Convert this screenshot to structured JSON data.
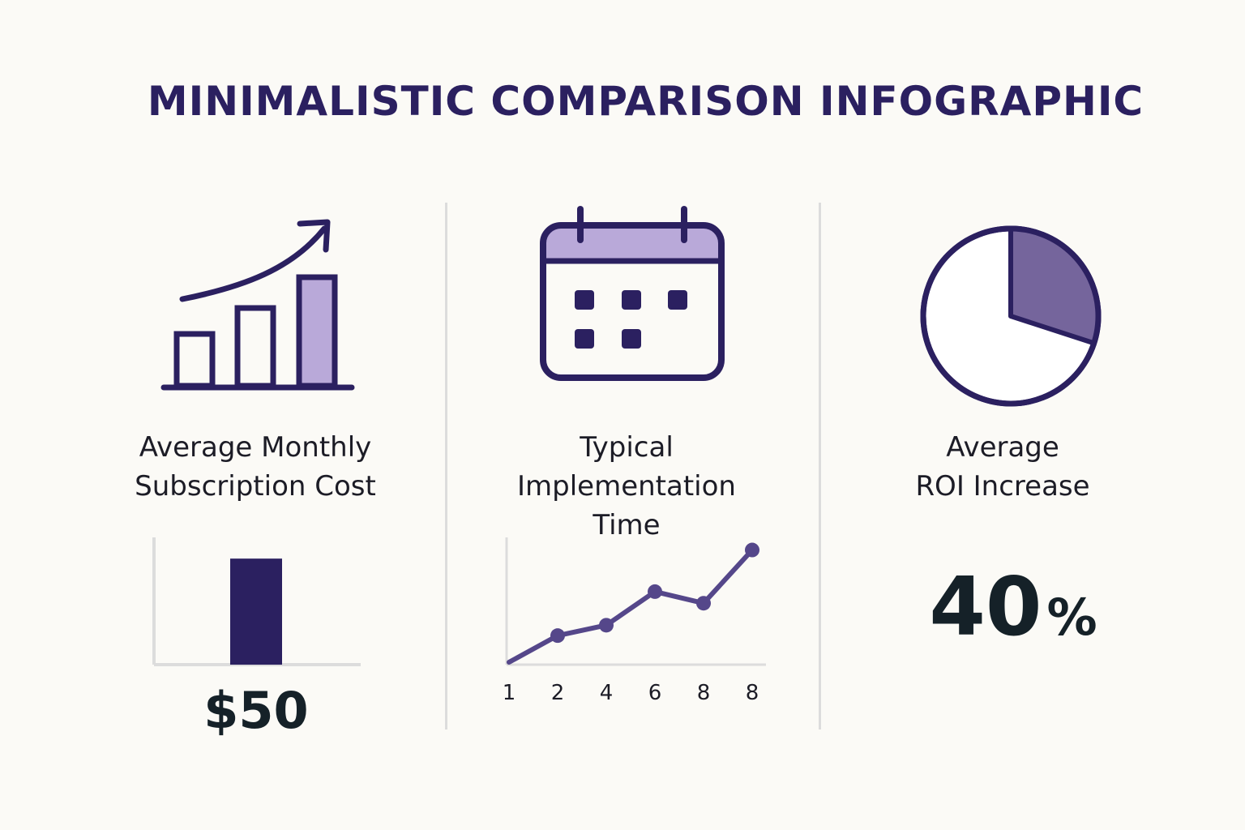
{
  "title": "MINIMALISTIC COMPARISON INFOGRAPHIC",
  "colors": {
    "primary": "#2b2060",
    "accent_light": "#b9a9d9",
    "accent_mid": "#75659c",
    "line": "#55478a",
    "axis": "#dcdcdc",
    "background": "#fbfaf6"
  },
  "panels": [
    {
      "icon": "growth-bar-chart-icon",
      "label_lines": [
        "Average Monthly",
        "Subscription Cost"
      ],
      "value_text": "$50"
    },
    {
      "icon": "calendar-icon",
      "label_lines": [
        "Typical",
        "Implementation",
        "Time"
      ]
    },
    {
      "icon": "pie-chart-icon",
      "label_lines": [
        "Average",
        "ROI Increase"
      ],
      "value_number": "40",
      "value_unit": "%",
      "pie_fraction": 0.3
    }
  ],
  "chart_data": [
    {
      "type": "bar",
      "categories": [
        ""
      ],
      "values": [
        50
      ],
      "value_label": "$50",
      "ylim": [
        0,
        60
      ],
      "grid": false
    },
    {
      "type": "line",
      "x_tick_labels": [
        "1",
        "2",
        "4",
        "6",
        "8",
        "8"
      ],
      "values": [
        0,
        2.3,
        3.2,
        6.1,
        5.1,
        9.7
      ],
      "ylim": [
        0,
        11
      ],
      "grid": false
    }
  ]
}
